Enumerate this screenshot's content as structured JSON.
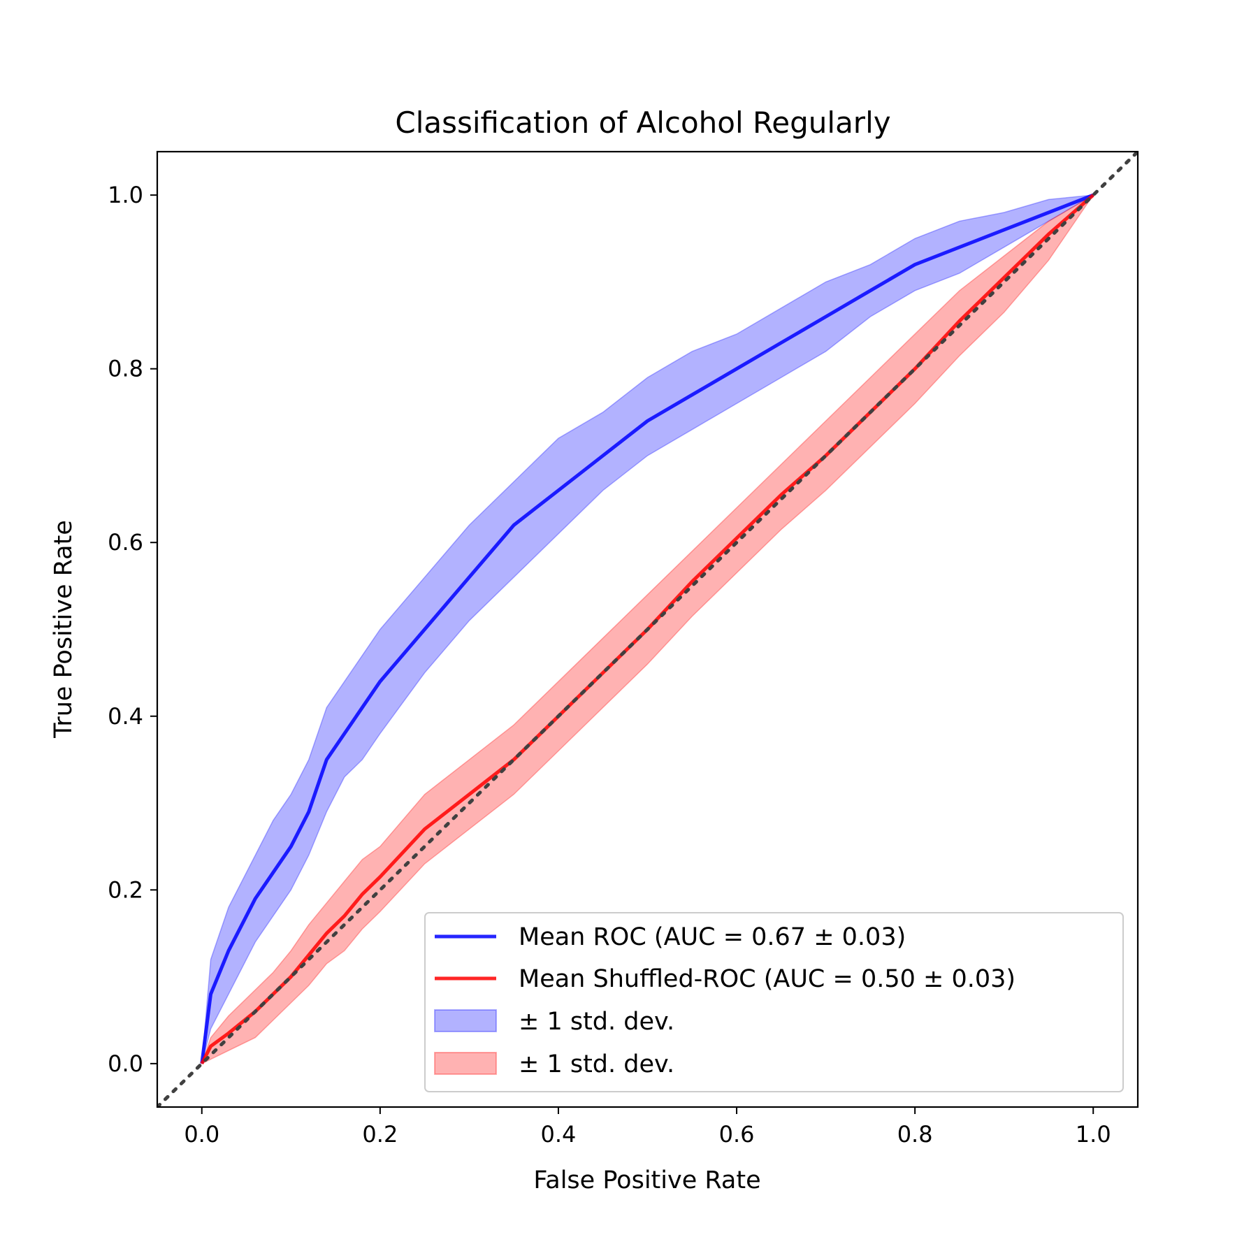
{
  "chart_data": {
    "type": "line",
    "title": "Classification of Alcohol Regularly",
    "xlabel": "False Positive Rate",
    "ylabel": "True Positive Rate",
    "xlim": [
      -0.05,
      1.05
    ],
    "ylim": [
      -0.05,
      1.05
    ],
    "xticks": [
      "0.0",
      "0.2",
      "0.4",
      "0.6",
      "0.8",
      "1.0"
    ],
    "yticks": [
      "0.0",
      "0.2",
      "0.4",
      "0.6",
      "0.8",
      "1.0"
    ],
    "grid": false,
    "legend_position": "lower-right",
    "x": [
      0.0,
      0.01,
      0.03,
      0.06,
      0.08,
      0.1,
      0.12,
      0.14,
      0.16,
      0.18,
      0.2,
      0.25,
      0.3,
      0.35,
      0.4,
      0.45,
      0.5,
      0.55,
      0.6,
      0.65,
      0.7,
      0.75,
      0.8,
      0.85,
      0.9,
      0.95,
      1.0
    ],
    "series": [
      {
        "name": "Mean ROC (AUC = 0.67 ± 0.03)",
        "color": "#0000ff",
        "values": [
          0.0,
          0.08,
          0.13,
          0.19,
          0.22,
          0.25,
          0.29,
          0.35,
          0.38,
          0.41,
          0.44,
          0.5,
          0.56,
          0.62,
          0.66,
          0.7,
          0.74,
          0.77,
          0.8,
          0.83,
          0.86,
          0.89,
          0.92,
          0.94,
          0.96,
          0.98,
          1.0
        ],
        "upper": [
          0.0,
          0.12,
          0.18,
          0.24,
          0.28,
          0.31,
          0.35,
          0.41,
          0.44,
          0.47,
          0.5,
          0.56,
          0.62,
          0.67,
          0.72,
          0.75,
          0.79,
          0.82,
          0.84,
          0.87,
          0.9,
          0.92,
          0.95,
          0.97,
          0.98,
          0.995,
          1.0
        ],
        "lower": [
          0.0,
          0.04,
          0.08,
          0.14,
          0.17,
          0.2,
          0.24,
          0.29,
          0.33,
          0.35,
          0.38,
          0.45,
          0.51,
          0.56,
          0.61,
          0.66,
          0.7,
          0.73,
          0.76,
          0.79,
          0.82,
          0.86,
          0.89,
          0.91,
          0.94,
          0.97,
          1.0
        ],
        "band_label": "± 1 std. dev."
      },
      {
        "name": "Mean Shuffled-ROC (AUC = 0.50 ± 0.03)",
        "color": "#ff0000",
        "values": [
          0.0,
          0.02,
          0.035,
          0.06,
          0.08,
          0.1,
          0.125,
          0.15,
          0.17,
          0.195,
          0.215,
          0.27,
          0.31,
          0.35,
          0.4,
          0.45,
          0.5,
          0.555,
          0.605,
          0.655,
          0.7,
          0.75,
          0.8,
          0.855,
          0.905,
          0.955,
          1.0
        ],
        "upper": [
          0.0,
          0.03,
          0.055,
          0.085,
          0.105,
          0.13,
          0.16,
          0.185,
          0.21,
          0.235,
          0.25,
          0.31,
          0.35,
          0.39,
          0.44,
          0.49,
          0.54,
          0.59,
          0.64,
          0.69,
          0.74,
          0.79,
          0.84,
          0.89,
          0.93,
          0.97,
          1.0
        ],
        "lower": [
          0.0,
          0.005,
          0.015,
          0.03,
          0.05,
          0.07,
          0.09,
          0.115,
          0.13,
          0.155,
          0.175,
          0.23,
          0.27,
          0.31,
          0.36,
          0.41,
          0.46,
          0.515,
          0.565,
          0.615,
          0.66,
          0.71,
          0.76,
          0.815,
          0.865,
          0.925,
          1.0
        ],
        "band_label": "± 1 std. dev."
      }
    ],
    "reference_line": {
      "x": [
        -0.05,
        1.05
      ],
      "y": [
        -0.05,
        1.05
      ],
      "color": "#404040",
      "style": "dotted"
    }
  }
}
